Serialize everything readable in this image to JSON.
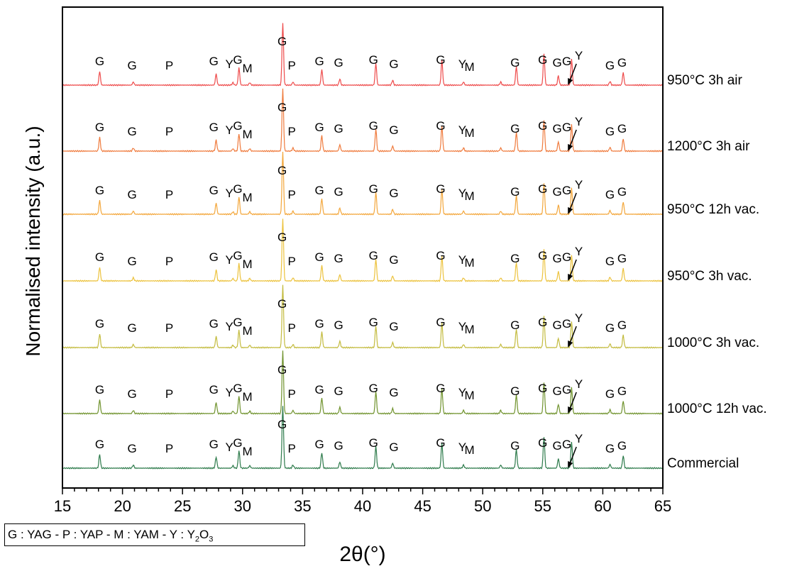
{
  "chart_data": {
    "type": "line",
    "xlabel": "2θ(°)",
    "ylabel": "Normalised intensity (a.u.)",
    "xlim": [
      15,
      65
    ],
    "x_ticks": [
      "15",
      "20",
      "25",
      "30",
      "35",
      "40",
      "45",
      "50",
      "55",
      "60",
      "65"
    ],
    "legend_box": {
      "prefix": "G : YAG - P : YAP - M : YAM - Y : Y",
      "sub1": "2",
      "mid": "O",
      "sub2": "3"
    },
    "peaks": [
      {
        "x": 18.1,
        "h": 0.22
      },
      {
        "x": 20.9,
        "h": 0.05
      },
      {
        "x": 27.8,
        "h": 0.18
      },
      {
        "x": 29.2,
        "h": 0.04
      },
      {
        "x": 29.7,
        "h": 0.28
      },
      {
        "x": 30.6,
        "h": 0.04
      },
      {
        "x": 33.35,
        "h": 1.0
      },
      {
        "x": 34.2,
        "h": 0.05
      },
      {
        "x": 36.6,
        "h": 0.25
      },
      {
        "x": 38.1,
        "h": 0.1
      },
      {
        "x": 41.1,
        "h": 0.35
      },
      {
        "x": 42.5,
        "h": 0.08
      },
      {
        "x": 46.6,
        "h": 0.4
      },
      {
        "x": 48.4,
        "h": 0.05
      },
      {
        "x": 51.5,
        "h": 0.05
      },
      {
        "x": 52.8,
        "h": 0.3
      },
      {
        "x": 55.1,
        "h": 0.5
      },
      {
        "x": 56.3,
        "h": 0.15
      },
      {
        "x": 57.4,
        "h": 0.42
      },
      {
        "x": 60.6,
        "h": 0.06
      },
      {
        "x": 61.7,
        "h": 0.2
      }
    ],
    "series": [
      {
        "name": "950°C 3h air",
        "color": "#ee4a4a"
      },
      {
        "name": "1200°C 3h air",
        "color": "#ef7a3c"
      },
      {
        "name": "950°C 12h vac.",
        "color": "#f3a63a"
      },
      {
        "name": "950°C 3h vac.",
        "color": "#ecc23c"
      },
      {
        "name": "1000°C 3h vac.",
        "color": "#c3bb3e"
      },
      {
        "name": "1000°C 12h vac.",
        "color": "#6f922c"
      },
      {
        "name": "Commercial",
        "color": "#2c7a4a"
      }
    ],
    "phase_labels": [
      {
        "text": "G",
        "x": 18.1,
        "dy": 0
      },
      {
        "text": "G",
        "x": 20.8,
        "dy": 6
      },
      {
        "text": "P",
        "x": 23.9,
        "dy": 6
      },
      {
        "text": "G",
        "x": 27.6,
        "dy": 0
      },
      {
        "text": "Y",
        "x": 28.9,
        "dy": 4
      },
      {
        "text": "G",
        "x": 29.6,
        "dy": -2
      },
      {
        "text": "M",
        "x": 30.4,
        "dy": 10
      },
      {
        "text": "G",
        "x": 33.3,
        "dy": -28
      },
      {
        "text": "P",
        "x": 34.1,
        "dy": 6
      },
      {
        "text": "G",
        "x": 36.4,
        "dy": 0
      },
      {
        "text": "G",
        "x": 38.0,
        "dy": 2
      },
      {
        "text": "G",
        "x": 40.9,
        "dy": -2
      },
      {
        "text": "G",
        "x": 42.6,
        "dy": 4
      },
      {
        "text": "G",
        "x": 46.5,
        "dy": -2
      },
      {
        "text": "Y",
        "x": 48.3,
        "dy": 4
      },
      {
        "text": "M",
        "x": 48.9,
        "dy": 8
      },
      {
        "text": "G",
        "x": 52.7,
        "dy": 2
      },
      {
        "text": "G",
        "x": 55.0,
        "dy": -2
      },
      {
        "text": "G",
        "x": 56.2,
        "dy": 2
      },
      {
        "text": "G",
        "x": 57.0,
        "dy": 0
      },
      {
        "text": "Y",
        "x": 58.0,
        "dy": -8
      },
      {
        "text": "G",
        "x": 60.6,
        "dy": 6
      },
      {
        "text": "G",
        "x": 61.6,
        "dy": 2
      }
    ]
  }
}
